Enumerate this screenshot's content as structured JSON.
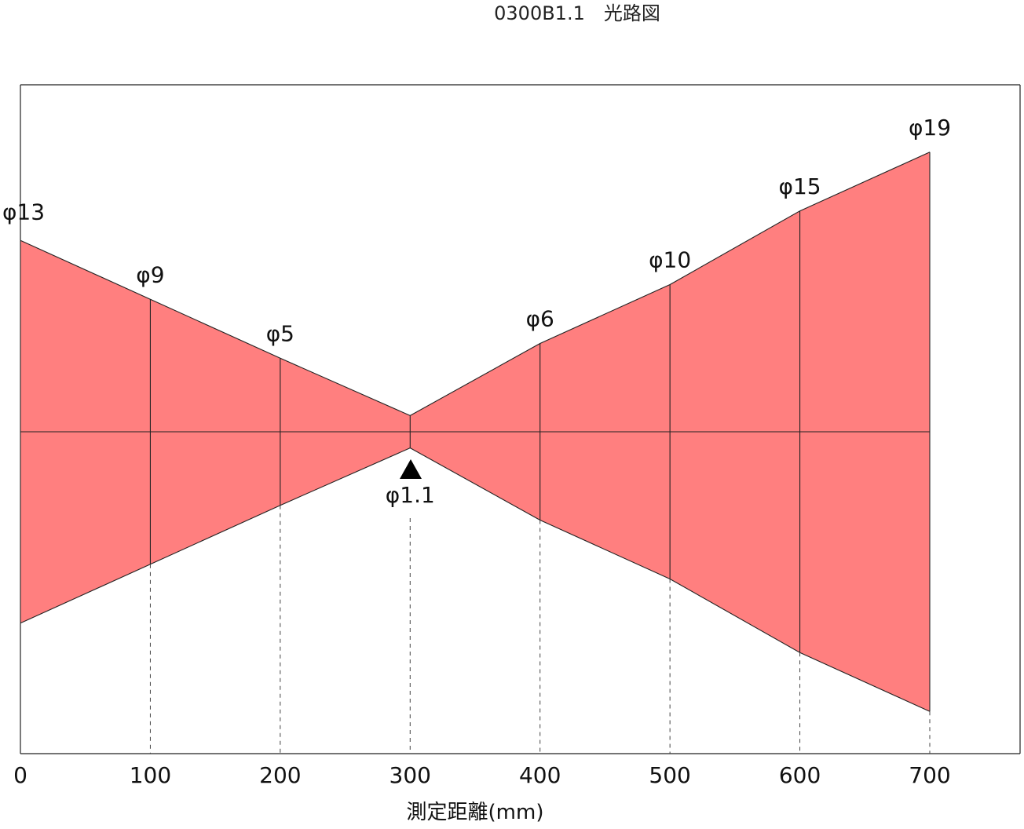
{
  "title": "0300B1.1　光路図",
  "xlabel": "測定距離(mm)",
  "colors": {
    "beam_fill": "#ff7f7f",
    "line": "#222222"
  },
  "chart_data": {
    "type": "beam-diagram",
    "xlim": [
      0,
      700
    ],
    "focal_point": {
      "distance": 300,
      "diameter": 1.1,
      "label": "φ1.1"
    },
    "x_ticks": [
      0,
      100,
      200,
      300,
      400,
      500,
      600,
      700
    ],
    "x_tick_labels": [
      "0",
      "100",
      "200",
      "300",
      "400",
      "500",
      "600",
      "700"
    ],
    "stations": [
      {
        "distance": 0,
        "diameter": 13,
        "label": "φ13"
      },
      {
        "distance": 100,
        "diameter": 9,
        "label": "φ9"
      },
      {
        "distance": 200,
        "diameter": 5,
        "label": "φ5"
      },
      {
        "distance": 300,
        "diameter": 1.1,
        "label": "φ1.1"
      },
      {
        "distance": 400,
        "diameter": 6,
        "label": "φ6"
      },
      {
        "distance": 500,
        "diameter": 10,
        "label": "φ10"
      },
      {
        "distance": 600,
        "diameter": 15,
        "label": "φ15"
      },
      {
        "distance": 700,
        "diameter": 19,
        "label": "φ19"
      }
    ]
  }
}
